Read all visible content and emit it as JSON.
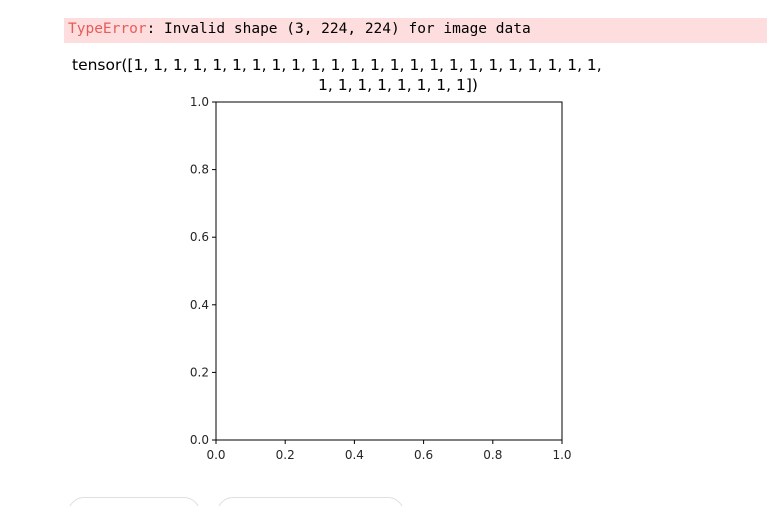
{
  "error": {
    "name": "TypeError",
    "message": ": Invalid shape (3, 224, 224) for image data"
  },
  "output": {
    "line1": "tensor([1, 1, 1, 1, 1, 1, 1, 1, 1, 1, 1, 1, 1, 1, 1, 1, 1, 1, 1, 1, 1, 1, 1, 1,",
    "line2": "1, 1, 1, 1, 1, 1, 1, 1])"
  },
  "chart_data": {
    "type": "scatter",
    "title": "",
    "xlabel": "",
    "ylabel": "",
    "xlim": [
      0.0,
      1.0
    ],
    "ylim": [
      0.0,
      1.0
    ],
    "x_ticks": [
      "0.0",
      "0.2",
      "0.4",
      "0.6",
      "0.8",
      "1.0"
    ],
    "y_ticks": [
      "0.0",
      "0.2",
      "0.4",
      "0.6",
      "0.8",
      "1.0"
    ],
    "series": [],
    "grid": false
  }
}
